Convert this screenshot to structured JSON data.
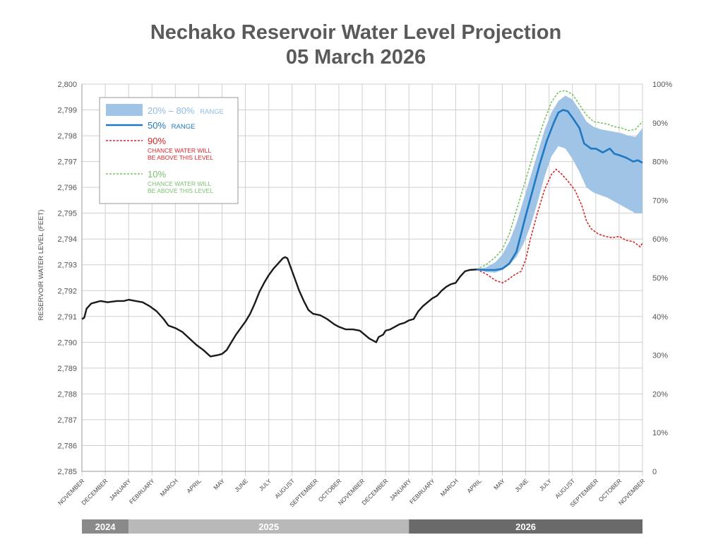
{
  "title_line1": "Nechako Reservoir Water Level Projection",
  "title_line2": "05 March 2026",
  "colors": {
    "title": "#5a5a5a",
    "grid": "#cfcfcf",
    "axis_text": "#555555",
    "historical": "#1a1a1a",
    "median": "#1f78c1",
    "band": "#9fc4e6",
    "p90": "#d62728",
    "p10": "#7ac36a",
    "year_2024": "#8a8a8a",
    "year_2025": "#b9b9b9",
    "year_2026": "#6a6a6a"
  },
  "chart_data": {
    "type": "line",
    "ylabel": "RESERVOIR WATER LEVEL (FEET)",
    "ylim": [
      2785,
      2800
    ],
    "yticks": [
      "2,785",
      "2,786",
      "2,787",
      "2,788",
      "2,789",
      "2,790",
      "2,791",
      "2,792",
      "2,793",
      "2,794",
      "2,795",
      "2,796",
      "2,797",
      "2,798",
      "2,799",
      "2,800"
    ],
    "y2ticks": [
      "0",
      "10%",
      "20%",
      "30%",
      "40%",
      "50%",
      "60%",
      "70%",
      "80%",
      "90%",
      "100%"
    ],
    "x_unit": "month index from November 2024",
    "xlim": [
      0,
      24
    ],
    "x_labels": [
      "NOVEMBER",
      "DECEMBER",
      "JANUARY",
      "FEBRUARY",
      "MARCH",
      "APRIL",
      "MAY",
      "JUNE",
      "JULY",
      "AUGUST",
      "SEPTEMBER",
      "OCTOBER",
      "NOVEMBER",
      "DECEMBER",
      "JANUARY",
      "FEBRUARY",
      "MARCH",
      "APRIL",
      "MAY",
      "JUNE",
      "JULY",
      "AUGUST",
      "SEPTEMBER",
      "OCTOBER",
      "NOVEMBER"
    ],
    "years": [
      {
        "label": "2024",
        "from": 0,
        "to": 2
      },
      {
        "label": "2025",
        "from": 2,
        "to": 14
      },
      {
        "label": "2026",
        "from": 14,
        "to": 24
      }
    ],
    "legend": {
      "band_label": "20% – 80%",
      "band_suffix": "RANGE",
      "median_label": "50%",
      "median_suffix": "RANGE",
      "p90_label": "90%",
      "p90_note_1": "CHANCE WATER WILL",
      "p90_note_2": "BE ABOVE THIS LEVEL",
      "p10_label": "10%",
      "p10_note_1": "CHANCE WATER WILL",
      "p10_note_2": "BE ABOVE THIS LEVEL"
    },
    "historical": [
      [
        0,
        2790.9
      ],
      [
        0.1,
        2790.95
      ],
      [
        0.2,
        2791.3
      ],
      [
        0.4,
        2791.5
      ],
      [
        0.6,
        2791.55
      ],
      [
        0.8,
        2791.6
      ],
      [
        1.1,
        2791.55
      ],
      [
        1.5,
        2791.6
      ],
      [
        1.8,
        2791.6
      ],
      [
        2.0,
        2791.65
      ],
      [
        2.3,
        2791.6
      ],
      [
        2.6,
        2791.55
      ],
      [
        2.9,
        2791.4
      ],
      [
        3.2,
        2791.2
      ],
      [
        3.5,
        2790.9
      ],
      [
        3.7,
        2790.65
      ],
      [
        4.0,
        2790.55
      ],
      [
        4.3,
        2790.4
      ],
      [
        4.6,
        2790.15
      ],
      [
        4.9,
        2789.9
      ],
      [
        5.2,
        2789.7
      ],
      [
        5.5,
        2789.45
      ],
      [
        5.8,
        2789.5
      ],
      [
        6.0,
        2789.55
      ],
      [
        6.2,
        2789.7
      ],
      [
        6.4,
        2790.0
      ],
      [
        6.6,
        2790.3
      ],
      [
        6.8,
        2790.55
      ],
      [
        7.0,
        2790.8
      ],
      [
        7.2,
        2791.1
      ],
      [
        7.4,
        2791.5
      ],
      [
        7.6,
        2791.95
      ],
      [
        7.8,
        2792.3
      ],
      [
        8.0,
        2792.6
      ],
      [
        8.2,
        2792.85
      ],
      [
        8.4,
        2793.05
      ],
      [
        8.6,
        2793.25
      ],
      [
        8.7,
        2793.3
      ],
      [
        8.8,
        2793.25
      ],
      [
        8.9,
        2793.0
      ],
      [
        9.1,
        2792.5
      ],
      [
        9.3,
        2792.0
      ],
      [
        9.5,
        2791.6
      ],
      [
        9.7,
        2791.25
      ],
      [
        9.9,
        2791.1
      ],
      [
        10.2,
        2791.05
      ],
      [
        10.5,
        2790.9
      ],
      [
        10.8,
        2790.7
      ],
      [
        11.0,
        2790.6
      ],
      [
        11.3,
        2790.5
      ],
      [
        11.6,
        2790.5
      ],
      [
        11.9,
        2790.45
      ],
      [
        12.1,
        2790.3
      ],
      [
        12.3,
        2790.15
      ],
      [
        12.5,
        2790.05
      ],
      [
        12.6,
        2790.0
      ],
      [
        12.7,
        2790.2
      ],
      [
        12.9,
        2790.3
      ],
      [
        13.0,
        2790.45
      ],
      [
        13.2,
        2790.5
      ],
      [
        13.4,
        2790.6
      ],
      [
        13.6,
        2790.7
      ],
      [
        13.8,
        2790.75
      ],
      [
        14.0,
        2790.85
      ],
      [
        14.2,
        2790.9
      ],
      [
        14.4,
        2791.2
      ],
      [
        14.6,
        2791.4
      ],
      [
        14.8,
        2791.55
      ],
      [
        15.0,
        2791.7
      ],
      [
        15.2,
        2791.8
      ],
      [
        15.4,
        2792.0
      ],
      [
        15.6,
        2792.15
      ],
      [
        15.8,
        2792.25
      ],
      [
        16.0,
        2792.3
      ],
      [
        16.2,
        2792.55
      ],
      [
        16.4,
        2792.75
      ],
      [
        16.6,
        2792.8
      ],
      [
        16.9,
        2792.82
      ]
    ],
    "median": [
      [
        16.9,
        2792.82
      ],
      [
        17.3,
        2792.8
      ],
      [
        17.7,
        2792.8
      ],
      [
        18.0,
        2792.85
      ],
      [
        18.3,
        2793.05
      ],
      [
        18.6,
        2793.5
      ],
      [
        18.8,
        2794.2
      ],
      [
        19.0,
        2794.9
      ],
      [
        19.3,
        2795.9
      ],
      [
        19.6,
        2796.9
      ],
      [
        19.9,
        2797.8
      ],
      [
        20.2,
        2798.5
      ],
      [
        20.4,
        2798.9
      ],
      [
        20.6,
        2799.0
      ],
      [
        20.8,
        2798.95
      ],
      [
        21.0,
        2798.7
      ],
      [
        21.3,
        2798.3
      ],
      [
        21.5,
        2797.7
      ],
      [
        21.8,
        2797.5
      ],
      [
        22.0,
        2797.5
      ],
      [
        22.3,
        2797.35
      ],
      [
        22.6,
        2797.5
      ],
      [
        22.8,
        2797.3
      ],
      [
        23.0,
        2797.25
      ],
      [
        23.3,
        2797.15
      ],
      [
        23.6,
        2797.0
      ],
      [
        23.8,
        2797.05
      ],
      [
        24.0,
        2796.95
      ]
    ],
    "band_upper": [
      [
        16.9,
        2792.82
      ],
      [
        17.3,
        2792.9
      ],
      [
        17.7,
        2793.1
      ],
      [
        18.0,
        2793.4
      ],
      [
        18.3,
        2793.9
      ],
      [
        18.6,
        2794.6
      ],
      [
        18.9,
        2795.5
      ],
      [
        19.2,
        2796.4
      ],
      [
        19.5,
        2797.3
      ],
      [
        19.8,
        2798.2
      ],
      [
        20.1,
        2798.9
      ],
      [
        20.4,
        2799.35
      ],
      [
        20.7,
        2799.55
      ],
      [
        21.0,
        2799.4
      ],
      [
        21.3,
        2799.0
      ],
      [
        21.6,
        2798.55
      ],
      [
        21.9,
        2798.35
      ],
      [
        22.2,
        2798.25
      ],
      [
        22.5,
        2798.2
      ],
      [
        22.8,
        2798.15
      ],
      [
        23.1,
        2798.1
      ],
      [
        23.4,
        2798.0
      ],
      [
        23.7,
        2797.95
      ],
      [
        24.0,
        2798.3
      ]
    ],
    "band_lower": [
      [
        16.9,
        2792.82
      ],
      [
        17.3,
        2792.72
      ],
      [
        17.7,
        2792.7
      ],
      [
        18.0,
        2792.8
      ],
      [
        18.3,
        2793.0
      ],
      [
        18.6,
        2793.3
      ],
      [
        18.9,
        2793.8
      ],
      [
        19.2,
        2794.5
      ],
      [
        19.5,
        2795.4
      ],
      [
        19.8,
        2796.4
      ],
      [
        20.1,
        2797.2
      ],
      [
        20.4,
        2797.6
      ],
      [
        20.7,
        2797.5
      ],
      [
        21.0,
        2797.1
      ],
      [
        21.3,
        2796.6
      ],
      [
        21.6,
        2796.0
      ],
      [
        21.9,
        2795.8
      ],
      [
        22.2,
        2795.7
      ],
      [
        22.5,
        2795.6
      ],
      [
        22.8,
        2795.45
      ],
      [
        23.1,
        2795.3
      ],
      [
        23.4,
        2795.15
      ],
      [
        23.7,
        2795.0
      ],
      [
        24.0,
        2795.0
      ]
    ],
    "p90": [
      [
        16.9,
        2792.82
      ],
      [
        17.3,
        2792.65
      ],
      [
        17.7,
        2792.4
      ],
      [
        18.0,
        2792.3
      ],
      [
        18.2,
        2792.4
      ],
      [
        18.5,
        2792.6
      ],
      [
        18.8,
        2792.75
      ],
      [
        19.0,
        2793.2
      ],
      [
        19.2,
        2794.0
      ],
      [
        19.5,
        2795.0
      ],
      [
        19.8,
        2795.9
      ],
      [
        20.1,
        2796.5
      ],
      [
        20.3,
        2796.7
      ],
      [
        20.5,
        2796.55
      ],
      [
        20.8,
        2796.25
      ],
      [
        21.1,
        2795.9
      ],
      [
        21.4,
        2795.3
      ],
      [
        21.6,
        2794.7
      ],
      [
        21.8,
        2794.4
      ],
      [
        22.1,
        2794.2
      ],
      [
        22.4,
        2794.1
      ],
      [
        22.7,
        2794.05
      ],
      [
        23.0,
        2794.1
      ],
      [
        23.3,
        2793.95
      ],
      [
        23.6,
        2793.9
      ],
      [
        23.9,
        2793.7
      ],
      [
        24.0,
        2793.85
      ]
    ],
    "p10": [
      [
        16.9,
        2792.82
      ],
      [
        17.3,
        2793.0
      ],
      [
        17.7,
        2793.3
      ],
      [
        18.0,
        2793.6
      ],
      [
        18.3,
        2794.2
      ],
      [
        18.6,
        2795.1
      ],
      [
        18.9,
        2796.0
      ],
      [
        19.2,
        2796.9
      ],
      [
        19.5,
        2797.8
      ],
      [
        19.8,
        2798.6
      ],
      [
        20.1,
        2799.3
      ],
      [
        20.4,
        2799.7
      ],
      [
        20.7,
        2799.75
      ],
      [
        21.0,
        2799.6
      ],
      [
        21.3,
        2799.2
      ],
      [
        21.6,
        2798.8
      ],
      [
        21.9,
        2798.55
      ],
      [
        22.2,
        2798.5
      ],
      [
        22.5,
        2798.45
      ],
      [
        22.8,
        2798.35
      ],
      [
        23.1,
        2798.3
      ],
      [
        23.4,
        2798.2
      ],
      [
        23.7,
        2798.25
      ],
      [
        24.0,
        2798.55
      ]
    ]
  }
}
